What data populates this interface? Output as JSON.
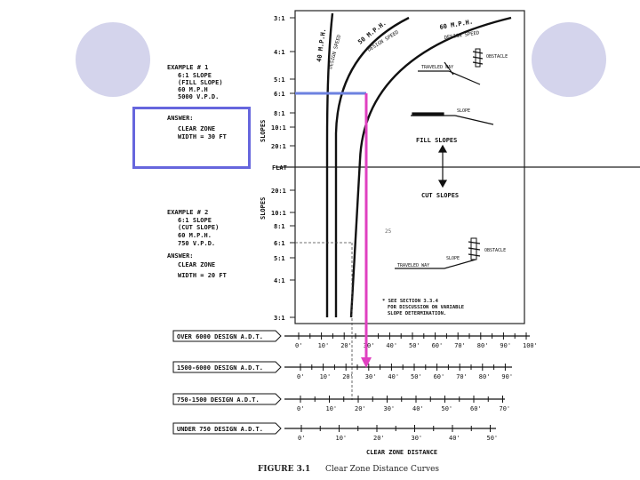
{
  "slide": {
    "example1": {
      "heading": "EXAMPLE # 1",
      "lines": [
        "6:1 SLOPE",
        "(FILL SLOPE)",
        "60 M.P.H",
        "5000 V.P.D."
      ],
      "answer_heading": "ANSWER:",
      "answer_lines": [
        "CLEAR ZONE",
        "WIDTH = 30 FT"
      ]
    },
    "example2": {
      "heading": "EXAMPLE # 2",
      "lines": [
        "6:1 SLOPE",
        "(CUT SLOPE)",
        "60 M.P.H.",
        "750 V.P.D."
      ],
      "answer_heading": "ANSWER:",
      "answer_lines": [
        "CLEAR ZONE",
        "WIDTH = 20 FT"
      ]
    },
    "slopes_axis_label": "SLOPES",
    "slope_labels_top": [
      "3:1",
      "4:1",
      "5:1",
      "6:1",
      "8:1",
      "10:1",
      "20:1"
    ],
    "flat_label": "FLAT",
    "slope_labels_bottom": [
      "20:1",
      "10:1",
      "8:1",
      "6:1",
      "5:1",
      "4:1",
      "3:1"
    ],
    "curve_labels": {
      "c40": "40 M.P.H.",
      "c50": "50 M.P.H.",
      "c60": "60 M.P.H.",
      "design_speed": "DESIGN SPEED"
    },
    "fill_slopes_label": "FILL SLOPES",
    "cut_slopes_label": "CUT SLOPES",
    "traveled_way": "TRAVELED WAY",
    "slope_word": "SLOPE",
    "obstacle": "OBSTACLE",
    "small_mark": "25",
    "footnote": [
      "* SEE SECTION 3.3.4",
      "FOR DISCUSSION ON VARIABLE",
      "SLOPE DETERMINATION."
    ],
    "adt_scales": [
      {
        "label": "OVER 6000 DESIGN A.D.T.",
        "ticks": [
          "0'",
          "10'",
          "20'",
          "30'",
          "40'",
          "50'",
          "60'",
          "70'",
          "80'",
          "90'",
          "100'"
        ]
      },
      {
        "label": "1500-6000 DESIGN A.D.T.",
        "ticks": [
          "0'",
          "10'",
          "20'",
          "30'",
          "40'",
          "50'",
          "60'",
          "70'",
          "80'",
          "90'"
        ]
      },
      {
        "label": "750-1500 DESIGN A.D.T.",
        "ticks": [
          "0'",
          "10'",
          "20'",
          "30'",
          "40'",
          "50'",
          "60'",
          "70'"
        ]
      },
      {
        "label": "UNDER 750 DESIGN A.D.T.",
        "ticks": [
          "0'",
          "10'",
          "20'",
          "30'",
          "40'",
          "50'"
        ]
      }
    ],
    "distance_label": "CLEAR ZONE DISTANCE",
    "figure_number": "FIGURE 3.1",
    "figure_title": "Clear Zone Distance Curves",
    "colors": {
      "highlight_box": "#6666dd",
      "blue_line": "#6d82e0",
      "magenta_arrow": "#e040c0",
      "circle": "#d4d4ec"
    }
  }
}
